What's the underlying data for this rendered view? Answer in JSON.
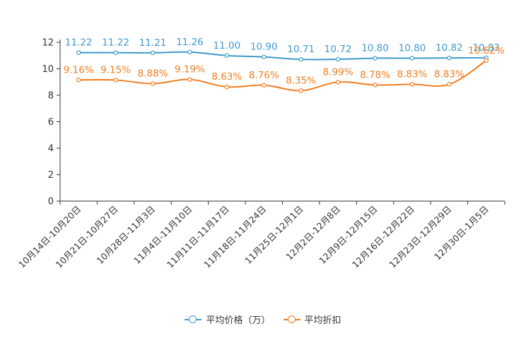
{
  "chart_data": {
    "type": "line",
    "categories": [
      "10月14日-10月20日",
      "10月21日-10月27日",
      "10月28日-11月3日",
      "11月4日-11月10日",
      "11月11日-11月17日",
      "11月18日-11月24日",
      "11月25日-12月1日",
      "12月2日-12月8日",
      "12月9日-12月15日",
      "12月16日-12月22日",
      "12月23日-12月29日",
      "12月30日-1月5日"
    ],
    "series": [
      {
        "name": "平均价格（万）",
        "color": "#3f9bcc",
        "values": [
          11.22,
          11.22,
          11.21,
          11.26,
          11.0,
          10.9,
          10.71,
          10.72,
          10.8,
          10.8,
          10.82,
          10.83
        ],
        "labels": [
          "11.22",
          "11.22",
          "11.21",
          "11.26",
          "11.00",
          "10.90",
          "10.71",
          "10.72",
          "10.80",
          "10.80",
          "10.82",
          "10.83"
        ]
      },
      {
        "name": "平均折扣",
        "color": "#f07d1f",
        "values": [
          9.16,
          9.15,
          8.88,
          9.19,
          8.63,
          8.76,
          8.35,
          8.99,
          8.78,
          8.83,
          8.83,
          10.62
        ],
        "labels": [
          "9.16%",
          "9.15%",
          "8.88%",
          "9.19%",
          "8.63%",
          "8.76%",
          "8.35%",
          "8.99%",
          "8.78%",
          "8.83%",
          "8.83%",
          "10.62%"
        ]
      }
    ],
    "yticks": [
      "0",
      "2",
      "4",
      "6",
      "8",
      "10",
      "12"
    ],
    "ylim": [
      0,
      12
    ],
    "title": "",
    "xlabel": "",
    "ylabel": ""
  }
}
